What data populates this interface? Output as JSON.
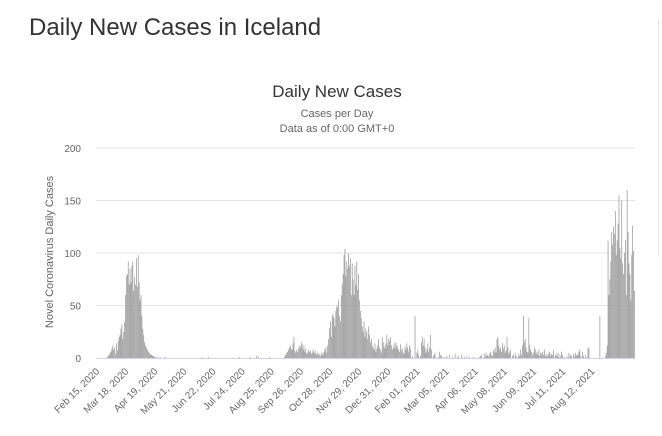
{
  "page": {
    "title": "Daily New Cases in Iceland"
  },
  "chart_data": {
    "type": "bar",
    "title": "Daily New Cases",
    "subtitle": "Cases per Day",
    "subtitle2": "Data as of 0:00 GMT+0",
    "ylabel": "Novel Coronavirus Daily Cases",
    "xlabel": "",
    "ylim": [
      0,
      200
    ],
    "yticks": [
      0,
      50,
      100,
      150,
      200
    ],
    "start_date": "2020-02-15",
    "xtick_labels": [
      "Feb 15, 2020",
      "Mar 18, 2020",
      "Apr 19, 2020",
      "May 21, 2020",
      "Jun 22, 2020",
      "Jul 24, 2020",
      "Aug 25, 2020",
      "Sep 26, 2020",
      "Oct 28, 2020",
      "Nov 29, 2020",
      "Dec 31, 2020",
      "Feb 01, 2021",
      "Mar 05, 2021",
      "Apr 06, 2021",
      "May 08, 2021",
      "Jun 09, 2021",
      "Jul 11, 2021",
      "Aug 12, 2021"
    ],
    "xtick_days": [
      0,
      32,
      64,
      96,
      128,
      160,
      192,
      224,
      256,
      288,
      320,
      352,
      384,
      416,
      448,
      480,
      512,
      544
    ],
    "grid": true,
    "bar_color": "#999999",
    "series": [
      {
        "name": "Daily New Cases",
        "values": [
          0,
          0,
          0,
          0,
          0,
          0,
          0,
          0,
          0,
          0,
          0,
          0,
          1,
          2,
          3,
          5,
          6,
          9,
          12,
          8,
          10,
          4,
          14,
          7,
          16,
          20,
          22,
          28,
          32,
          18,
          25,
          34,
          60,
          78,
          80,
          92,
          70,
          85,
          72,
          88,
          92,
          64,
          77,
          70,
          95,
          68,
          98,
          72,
          55,
          60,
          40,
          28,
          22,
          15,
          12,
          10,
          8,
          6,
          5,
          4,
          3,
          3,
          2,
          2,
          1,
          1,
          0,
          1,
          0,
          0,
          1,
          0,
          0,
          0,
          0,
          1,
          0,
          0,
          0,
          0,
          0,
          0,
          0,
          0,
          0,
          0,
          0,
          0,
          0,
          0,
          0,
          0,
          0,
          0,
          0,
          0,
          0,
          0,
          0,
          0,
          0,
          0,
          0,
          0,
          0,
          0,
          0,
          0,
          0,
          0,
          0,
          0,
          0,
          0,
          0,
          0,
          1,
          0,
          0,
          0,
          0,
          0,
          0,
          1,
          0,
          0,
          0,
          0,
          0,
          0,
          0,
          0,
          0,
          0,
          0,
          0,
          0,
          0,
          0,
          0,
          0,
          0,
          0,
          0,
          0,
          0,
          0,
          0,
          0,
          0,
          0,
          0,
          0,
          0,
          0,
          0,
          0,
          1,
          0,
          0,
          0,
          0,
          0,
          0,
          0,
          0,
          0,
          0,
          0,
          1,
          0,
          0,
          0,
          0,
          0,
          0,
          2,
          0,
          1,
          0,
          0,
          0,
          0,
          0,
          0,
          0,
          0,
          0,
          0,
          0,
          1,
          0,
          0,
          0,
          0,
          0,
          0,
          0,
          0,
          0,
          0,
          0,
          0,
          0,
          0,
          0,
          0,
          2,
          3,
          5,
          6,
          8,
          10,
          12,
          9,
          8,
          14,
          20,
          7,
          5,
          8,
          6,
          9,
          12,
          10,
          15,
          13,
          8,
          12,
          6,
          9,
          4,
          5,
          8,
          6,
          7,
          4,
          5,
          8,
          6,
          4,
          7,
          3,
          5,
          4,
          3,
          2,
          5,
          4,
          3,
          6,
          8,
          10,
          5,
          12,
          18,
          28,
          35,
          20,
          40,
          42,
          38,
          30,
          45,
          50,
          48,
          55,
          40,
          35,
          60,
          70,
          80,
          98,
          104,
          78,
          92,
          85,
          100,
          88,
          95,
          60,
          90,
          75,
          60,
          88,
          70,
          92,
          65,
          80,
          55,
          45,
          38,
          30,
          25,
          35,
          20,
          28,
          25,
          18,
          30,
          22,
          15,
          18,
          12,
          10,
          8,
          14,
          6,
          9,
          12,
          18,
          10,
          8,
          5,
          20,
          15,
          11,
          9,
          14,
          22,
          12,
          18,
          16,
          20,
          12,
          8,
          10,
          14,
          9,
          15,
          12,
          10,
          8,
          6,
          13,
          7,
          9,
          5,
          4,
          11,
          8,
          14,
          10,
          6,
          12,
          9,
          0,
          2,
          0,
          0,
          40,
          0,
          5,
          8,
          3,
          0,
          2,
          15,
          20,
          12,
          18,
          10,
          5,
          8,
          14,
          6,
          10,
          22,
          8,
          0,
          2,
          3,
          5,
          0,
          0,
          1,
          0,
          6,
          3,
          2,
          0,
          0,
          1,
          0,
          0,
          2,
          0,
          0,
          3,
          0,
          0,
          1,
          0,
          0,
          4,
          0,
          0,
          2,
          1,
          0,
          0,
          3,
          0,
          0,
          1,
          0,
          0,
          2,
          0,
          0,
          1,
          0,
          0,
          0,
          1,
          0,
          0,
          0,
          0,
          0,
          0,
          1,
          2,
          3,
          0,
          0,
          4,
          1,
          5,
          2,
          3,
          1,
          4,
          6,
          3,
          2,
          8,
          6,
          10,
          5,
          18,
          20,
          12,
          8,
          10,
          6,
          14,
          9,
          12,
          5,
          7,
          20,
          10,
          4,
          6,
          8,
          0,
          2,
          3,
          0,
          5,
          2,
          0,
          1,
          4,
          2,
          8,
          3,
          12,
          40,
          15,
          18,
          10,
          6,
          5,
          38,
          12,
          8,
          6,
          3,
          5,
          10,
          8,
          4,
          6,
          3,
          8,
          2,
          5,
          4,
          6,
          3,
          8,
          2,
          4,
          1,
          3,
          5,
          6,
          2,
          4,
          3,
          8,
          0,
          3,
          2,
          5,
          1,
          4,
          0,
          2,
          6,
          3,
          0,
          1,
          0,
          0,
          2,
          0,
          5,
          1,
          3,
          2,
          0,
          4,
          1,
          5,
          3,
          2,
          4,
          6,
          8,
          2,
          0,
          6,
          2,
          0,
          3,
          0,
          1,
          10,
          9,
          0,
          0,
          0,
          0,
          0,
          0,
          0,
          0,
          0,
          0,
          0,
          40,
          0,
          0,
          0,
          0,
          0,
          2,
          5,
          12,
          112,
          60,
          75,
          92,
          120,
          108,
          125,
          118,
          140,
          98,
          112,
          128,
          155,
          105,
          95,
          150,
          90,
          80,
          100,
          112,
          60,
          160,
          120,
          90,
          80,
          55,
          98,
          126,
          102,
          64
        ]
      }
    ]
  }
}
